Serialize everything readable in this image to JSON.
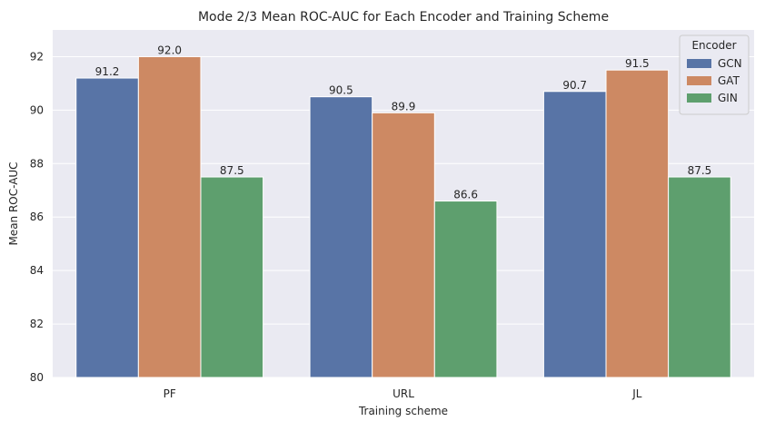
{
  "chart_data": {
    "type": "bar",
    "title": "Mode 2/3 Mean ROC-AUC for Each Encoder and Training Scheme",
    "xlabel": "Training scheme",
    "ylabel": "Mean ROC-AUC",
    "categories": [
      "PF",
      "URL",
      "JL"
    ],
    "ylim": [
      80,
      93
    ],
    "yticks": [
      80,
      82,
      84,
      86,
      88,
      90,
      92
    ],
    "grid": true,
    "legend": {
      "title": "Encoder",
      "placement": "top-right"
    },
    "series": [
      {
        "name": "GCN",
        "color": "#5874a6",
        "values": [
          91.2,
          90.5,
          90.7
        ],
        "labels": [
          "91.2",
          "90.5",
          "90.7"
        ]
      },
      {
        "name": "GAT",
        "color": "#cd8963",
        "values": [
          92.0,
          89.9,
          91.5
        ],
        "labels": [
          "92.0",
          "89.9",
          "91.5"
        ]
      },
      {
        "name": "GIN",
        "color": "#5e9f6e",
        "values": [
          87.5,
          86.6,
          87.5
        ],
        "labels": [
          "87.5",
          "86.6",
          "87.5"
        ]
      }
    ],
    "colors": {
      "plot_background": "#eaeaf2",
      "grid": "#ffffff",
      "text": "#262626"
    }
  }
}
